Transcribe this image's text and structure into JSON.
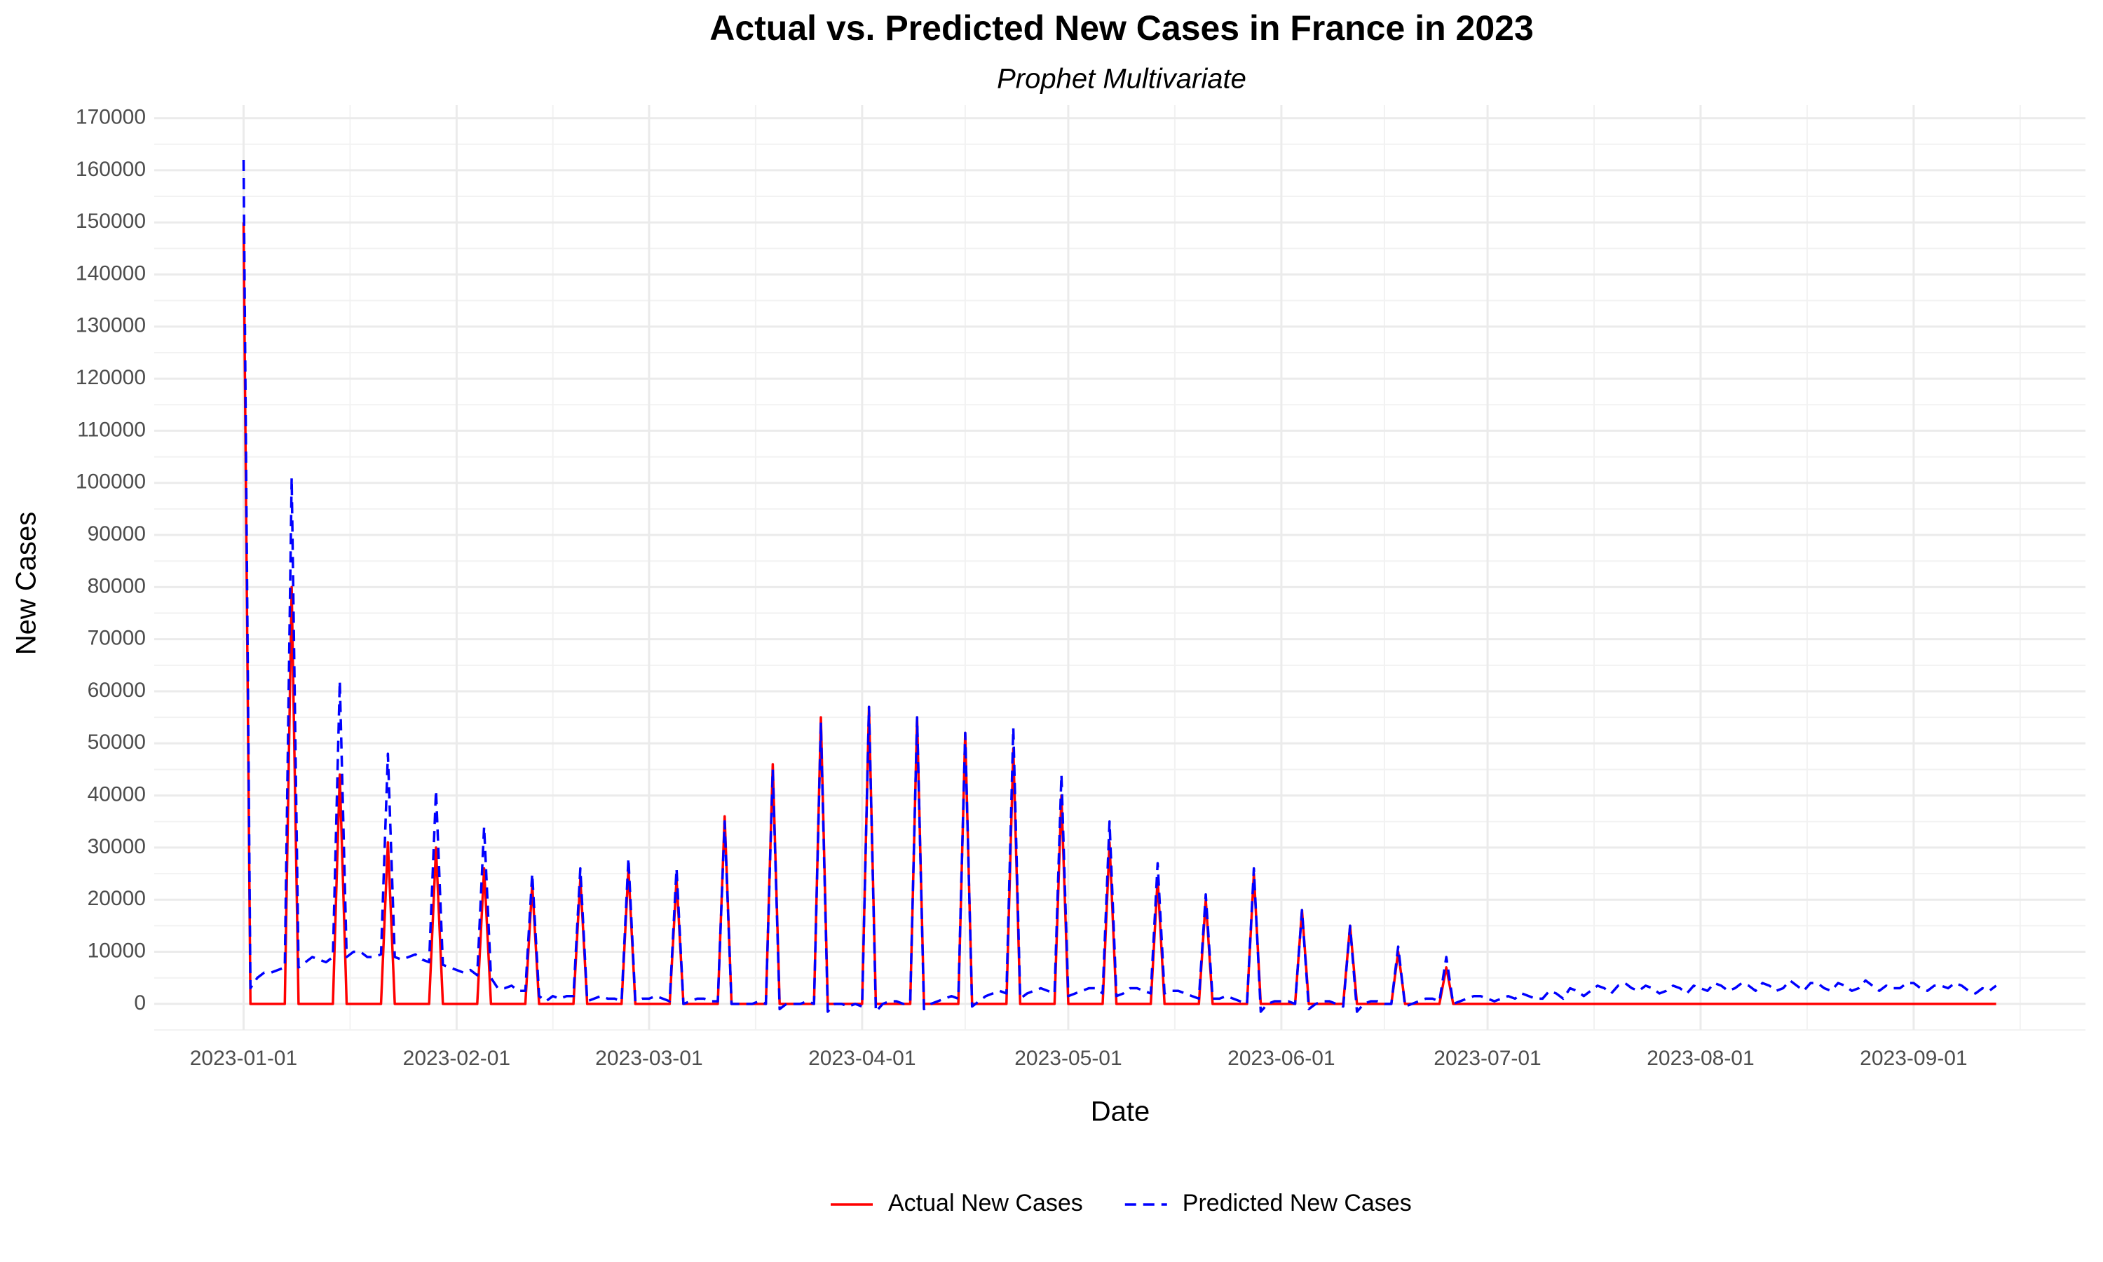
{
  "chart_data": {
    "type": "line",
    "title": "Actual vs. Predicted New Cases in France in 2023",
    "subtitle": "Prophet Multivariate",
    "x_label": "Date",
    "y_label": "New Cases",
    "grid": true,
    "legend": "bottom",
    "xlim": [
      "2022-12-19",
      "2023-09-26"
    ],
    "xticks": [
      "2023-01-01",
      "2023-02-01",
      "2023-03-01",
      "2023-04-01",
      "2023-05-01",
      "2023-06-01",
      "2023-07-01",
      "2023-08-01",
      "2023-09-01"
    ],
    "ylim": [
      -5000,
      172500
    ],
    "yticks": [
      0,
      10000,
      20000,
      30000,
      40000,
      50000,
      60000,
      70000,
      80000,
      90000,
      100000,
      110000,
      120000,
      130000,
      140000,
      150000,
      160000,
      170000
    ],
    "x": [
      "2023-01-01",
      "2023-01-02",
      "2023-01-03",
      "2023-01-04",
      "2023-01-05",
      "2023-01-06",
      "2023-01-07",
      "2023-01-08",
      "2023-01-09",
      "2023-01-10",
      "2023-01-11",
      "2023-01-12",
      "2023-01-13",
      "2023-01-14",
      "2023-01-15",
      "2023-01-16",
      "2023-01-17",
      "2023-01-18",
      "2023-01-19",
      "2023-01-20",
      "2023-01-21",
      "2023-01-22",
      "2023-01-23",
      "2023-01-24",
      "2023-01-25",
      "2023-01-26",
      "2023-01-27",
      "2023-01-28",
      "2023-01-29",
      "2023-01-30",
      "2023-01-31",
      "2023-02-01",
      "2023-02-02",
      "2023-02-03",
      "2023-02-04",
      "2023-02-05",
      "2023-02-06",
      "2023-02-07",
      "2023-02-08",
      "2023-02-09",
      "2023-02-10",
      "2023-02-11",
      "2023-02-12",
      "2023-02-13",
      "2023-02-14",
      "2023-02-15",
      "2023-02-16",
      "2023-02-17",
      "2023-02-18",
      "2023-02-19",
      "2023-02-20",
      "2023-02-21",
      "2023-02-22",
      "2023-02-23",
      "2023-02-24",
      "2023-02-25",
      "2023-02-26",
      "2023-02-27",
      "2023-02-28",
      "2023-03-01",
      "2023-03-02",
      "2023-03-03",
      "2023-03-04",
      "2023-03-05",
      "2023-03-06",
      "2023-03-07",
      "2023-03-08",
      "2023-03-09",
      "2023-03-10",
      "2023-03-11",
      "2023-03-12",
      "2023-03-13",
      "2023-03-14",
      "2023-03-15",
      "2023-03-16",
      "2023-03-17",
      "2023-03-18",
      "2023-03-19",
      "2023-03-20",
      "2023-03-21",
      "2023-03-22",
      "2023-03-23",
      "2023-03-24",
      "2023-03-25",
      "2023-03-26",
      "2023-03-27",
      "2023-03-28",
      "2023-03-29",
      "2023-03-30",
      "2023-03-31",
      "2023-04-01",
      "2023-04-02",
      "2023-04-03",
      "2023-04-04",
      "2023-04-05",
      "2023-04-06",
      "2023-04-07",
      "2023-04-08",
      "2023-04-09",
      "2023-04-10",
      "2023-04-11",
      "2023-04-12",
      "2023-04-13",
      "2023-04-14",
      "2023-04-15",
      "2023-04-16",
      "2023-04-17",
      "2023-04-18",
      "2023-04-19",
      "2023-04-20",
      "2023-04-21",
      "2023-04-22",
      "2023-04-23",
      "2023-04-24",
      "2023-04-25",
      "2023-04-26",
      "2023-04-27",
      "2023-04-28",
      "2023-04-29",
      "2023-04-30",
      "2023-05-01",
      "2023-05-02",
      "2023-05-03",
      "2023-05-04",
      "2023-05-05",
      "2023-05-06",
      "2023-05-07",
      "2023-05-08",
      "2023-05-09",
      "2023-05-10",
      "2023-05-11",
      "2023-05-12",
      "2023-05-13",
      "2023-05-14",
      "2023-05-15",
      "2023-05-16",
      "2023-05-17",
      "2023-05-18",
      "2023-05-19",
      "2023-05-20",
      "2023-05-21",
      "2023-05-22",
      "2023-05-23",
      "2023-05-24",
      "2023-05-25",
      "2023-05-26",
      "2023-05-27",
      "2023-05-28",
      "2023-05-29",
      "2023-05-30",
      "2023-05-31",
      "2023-06-01",
      "2023-06-02",
      "2023-06-03",
      "2023-06-04",
      "2023-06-05",
      "2023-06-06",
      "2023-06-07",
      "2023-06-08",
      "2023-06-09",
      "2023-06-10",
      "2023-06-11",
      "2023-06-12",
      "2023-06-13",
      "2023-06-14",
      "2023-06-15",
      "2023-06-16",
      "2023-06-17",
      "2023-06-18",
      "2023-06-19",
      "2023-06-20",
      "2023-06-21",
      "2023-06-22",
      "2023-06-23",
      "2023-06-24",
      "2023-06-25",
      "2023-06-26",
      "2023-06-27",
      "2023-06-28",
      "2023-06-29",
      "2023-06-30",
      "2023-07-01",
      "2023-07-02",
      "2023-07-03",
      "2023-07-04",
      "2023-07-05",
      "2023-07-06",
      "2023-07-07",
      "2023-07-08",
      "2023-07-09",
      "2023-07-10",
      "2023-07-11",
      "2023-07-12",
      "2023-07-13",
      "2023-07-14",
      "2023-07-15",
      "2023-07-16",
      "2023-07-17",
      "2023-07-18",
      "2023-07-19",
      "2023-07-20",
      "2023-07-21",
      "2023-07-22",
      "2023-07-23",
      "2023-07-24",
      "2023-07-25",
      "2023-07-26",
      "2023-07-27",
      "2023-07-28",
      "2023-07-29",
      "2023-07-30",
      "2023-07-31",
      "2023-08-01",
      "2023-08-02",
      "2023-08-03",
      "2023-08-04",
      "2023-08-05",
      "2023-08-06",
      "2023-08-07",
      "2023-08-08",
      "2023-08-09",
      "2023-08-10",
      "2023-08-11",
      "2023-08-12",
      "2023-08-13",
      "2023-08-14",
      "2023-08-15",
      "2023-08-16",
      "2023-08-17",
      "2023-08-18",
      "2023-08-19",
      "2023-08-20",
      "2023-08-21",
      "2023-08-22",
      "2023-08-23",
      "2023-08-24",
      "2023-08-25",
      "2023-08-26",
      "2023-08-27",
      "2023-08-28",
      "2023-08-29",
      "2023-08-30",
      "2023-08-31",
      "2023-09-01",
      "2023-09-02",
      "2023-09-03",
      "2023-09-04",
      "2023-09-05",
      "2023-09-06",
      "2023-09-07",
      "2023-09-08",
      "2023-09-09",
      "2023-09-10",
      "2023-09-11",
      "2023-09-12",
      "2023-09-13"
    ],
    "series": [
      {
        "name": "Actual New Cases",
        "color": "#ff0000",
        "dash": false,
        "values": [
          150000,
          0,
          0,
          0,
          0,
          0,
          0,
          80000,
          0,
          0,
          0,
          0,
          0,
          0,
          44000,
          0,
          0,
          0,
          0,
          0,
          0,
          31000,
          0,
          0,
          0,
          0,
          0,
          0,
          30000,
          0,
          0,
          0,
          0,
          0,
          0,
          26000,
          0,
          0,
          0,
          0,
          0,
          0,
          23000,
          0,
          0,
          0,
          0,
          0,
          0,
          24000,
          0,
          0,
          0,
          0,
          0,
          0,
          26000,
          0,
          0,
          0,
          0,
          0,
          0,
          24000,
          0,
          0,
          0,
          0,
          0,
          0,
          36000,
          0,
          0,
          0,
          0,
          0,
          0,
          46000,
          0,
          0,
          0,
          0,
          0,
          0,
          55000,
          0,
          0,
          0,
          0,
          0,
          0,
          57000,
          0,
          0,
          0,
          0,
          0,
          0,
          55000,
          0,
          0,
          0,
          0,
          0,
          0,
          52000,
          0,
          0,
          0,
          0,
          0,
          0,
          49000,
          0,
          0,
          0,
          0,
          0,
          0,
          40000,
          0,
          0,
          0,
          0,
          0,
          0,
          31000,
          0,
          0,
          0,
          0,
          0,
          0,
          24000,
          0,
          0,
          0,
          0,
          0,
          0,
          20000,
          0,
          0,
          0,
          0,
          0,
          0,
          25000,
          0,
          0,
          0,
          0,
          0,
          0,
          18000,
          0,
          0,
          0,
          0,
          0,
          0,
          15000,
          0,
          0,
          0,
          0,
          0,
          0,
          10000,
          0,
          0,
          0,
          0,
          0,
          0,
          7000,
          0,
          0,
          0,
          0,
          0,
          0,
          0,
          0,
          0,
          0,
          0,
          0,
          0,
          0,
          0,
          0,
          0,
          0,
          0,
          0,
          0,
          0,
          0,
          0,
          0,
          0,
          0,
          0,
          0,
          0,
          0,
          0,
          0,
          0,
          0,
          0,
          0,
          0,
          0,
          0,
          0,
          0,
          0,
          0,
          0,
          0,
          0,
          0,
          0,
          0,
          0,
          0,
          0,
          0,
          0,
          0,
          0,
          0,
          0,
          0,
          0,
          0,
          0,
          0,
          0,
          0,
          0,
          0,
          0,
          0,
          0,
          0,
          0,
          0,
          0,
          0,
          0,
          0,
          0,
          0
        ]
      },
      {
        "name": "Predicted New Cases",
        "color": "#0000ff",
        "dash": true,
        "values": [
          162000,
          3000,
          5000,
          6000,
          6000,
          6500,
          7000,
          101000,
          7000,
          8000,
          9000,
          8500,
          8000,
          9000,
          62000,
          9000,
          10000,
          10000,
          9000,
          9000,
          9500,
          48000,
          9000,
          8500,
          9000,
          9500,
          8500,
          8000,
          41000,
          7500,
          7000,
          6500,
          6000,
          6500,
          5500,
          34000,
          5000,
          3000,
          3000,
          3500,
          2500,
          2500,
          25000,
          1500,
          500,
          1500,
          1000,
          1500,
          1500,
          26000,
          500,
          1000,
          1500,
          1000,
          1000,
          500,
          28000,
          500,
          1000,
          1000,
          1500,
          1000,
          500,
          26000,
          0,
          500,
          1000,
          1000,
          500,
          500,
          35000,
          0,
          0,
          0,
          0,
          500,
          0,
          45000,
          -1000,
          0,
          0,
          0,
          500,
          0,
          54000,
          -1500,
          0,
          0,
          -500,
          0,
          -500,
          57000,
          -1500,
          0,
          500,
          500,
          0,
          500,
          55000,
          -1000,
          0,
          500,
          1000,
          1500,
          1000,
          52000,
          -500,
          500,
          1500,
          2000,
          2500,
          2000,
          53000,
          1000,
          2000,
          2500,
          3000,
          2500,
          2000,
          44000,
          1500,
          2000,
          2500,
          3000,
          3000,
          2000,
          35000,
          1500,
          2000,
          3000,
          3000,
          2500,
          2000,
          27000,
          2000,
          2500,
          2500,
          2000,
          1500,
          1000,
          21000,
          1000,
          1000,
          1500,
          1000,
          500,
          0,
          26000,
          -1500,
          0,
          500,
          500,
          500,
          0,
          18000,
          -1000,
          0,
          500,
          500,
          0,
          -500,
          15000,
          -1500,
          0,
          500,
          500,
          0,
          0,
          11000,
          -500,
          0,
          500,
          1000,
          1000,
          500,
          9000,
          0,
          500,
          1000,
          1500,
          1500,
          1000,
          500,
          1000,
          1500,
          1000,
          2000,
          1500,
          1000,
          1000,
          2500,
          2000,
          1000,
          3000,
          2500,
          1500,
          2500,
          3500,
          3000,
          2000,
          3500,
          4000,
          3000,
          2500,
          3500,
          3000,
          2000,
          2500,
          3500,
          3000,
          2000,
          3500,
          3000,
          2500,
          4000,
          3500,
          2500,
          3000,
          4000,
          3500,
          2500,
          4000,
          3500,
          2500,
          3000,
          4500,
          3500,
          2500,
          4000,
          4000,
          3000,
          2500,
          4000,
          3500,
          2500,
          3000,
          4500,
          3500,
          2500,
          3500,
          3000,
          3000,
          4000,
          4000,
          3000,
          2500,
          3500,
          3500,
          3000,
          4000,
          3500,
          2500,
          2000,
          3000,
          2500,
          3500
        ]
      }
    ]
  }
}
